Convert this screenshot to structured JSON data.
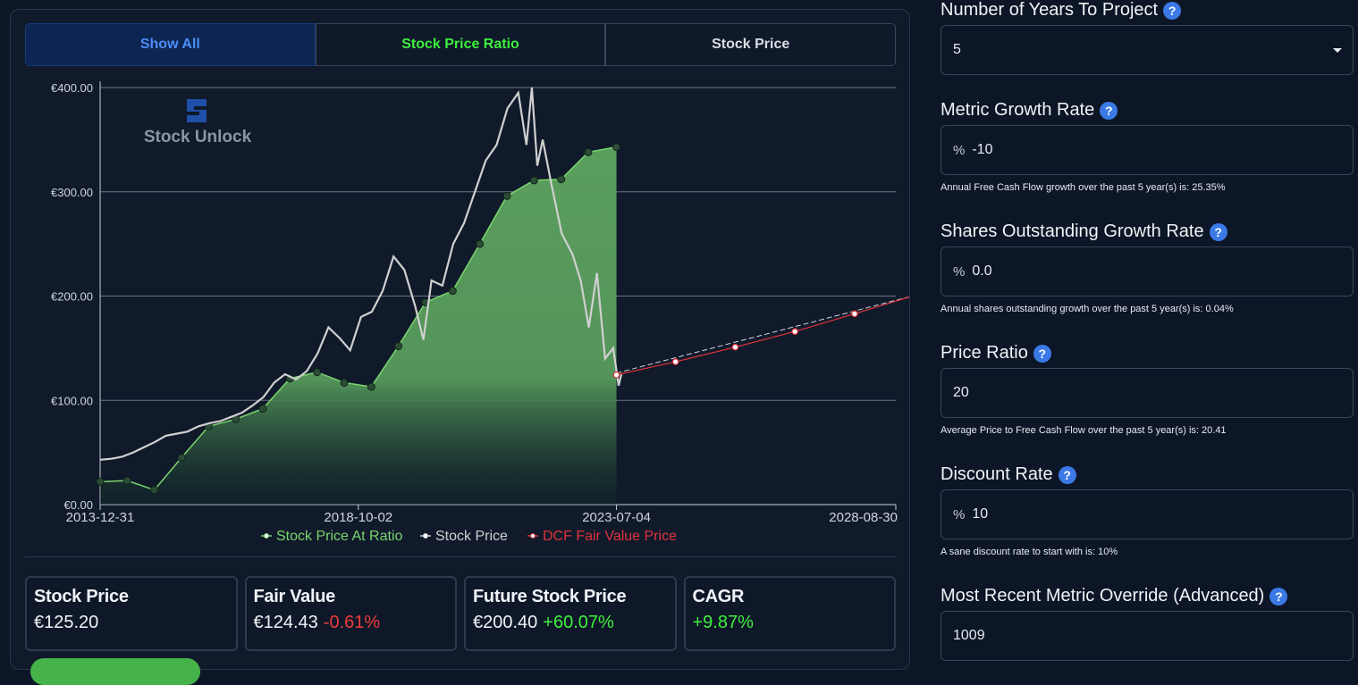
{
  "tabs": {
    "show_all": "Show All",
    "stock_price_ratio": "Stock Price Ratio",
    "stock_price": "Stock Price"
  },
  "watermark": {
    "text": "Stock Unlock"
  },
  "chart_data": {
    "type": "line",
    "title": "",
    "xlabel": "",
    "ylabel": "",
    "x_ticks": [
      "2013-12-31",
      "2018-10-02",
      "2023-07-04",
      "2028-08-30"
    ],
    "y_ticks": [
      "€0.00",
      "€100.00",
      "€200.00",
      "€300.00",
      "€400.00"
    ],
    "ylim": [
      0,
      400
    ],
    "xlim_years": [
      2013.99,
      2028.66
    ],
    "grid": true,
    "legend_position": "bottom",
    "series": [
      {
        "name": "Stock Price At Ratio",
        "color": "#7ad46e",
        "x": [
          2013.99,
          2014.49,
          2014.99,
          2015.49,
          2015.99,
          2016.49,
          2016.99,
          2017.49,
          2017.99,
          2018.49,
          2018.99,
          2019.49,
          2019.99,
          2020.49,
          2020.99,
          2021.49,
          2021.99,
          2022.49,
          2022.99,
          2023.51
        ],
        "values": [
          22,
          23,
          14,
          45,
          75,
          82,
          92,
          121,
          127,
          117,
          113,
          152,
          194,
          205,
          250,
          296,
          311,
          312,
          338,
          343
        ]
      },
      {
        "name": "Stock Price",
        "color": "#d0d0d0",
        "x": [
          2013.99,
          2014.2,
          2014.4,
          2014.6,
          2014.8,
          2015.0,
          2015.2,
          2015.4,
          2015.6,
          2015.8,
          2016.0,
          2016.2,
          2016.4,
          2016.6,
          2016.8,
          2017.0,
          2017.2,
          2017.4,
          2017.6,
          2017.8,
          2018.0,
          2018.2,
          2018.4,
          2018.6,
          2018.8,
          2019.0,
          2019.2,
          2019.4,
          2019.6,
          2019.8,
          2019.95,
          2020.1,
          2020.3,
          2020.5,
          2020.7,
          2020.9,
          2021.1,
          2021.3,
          2021.5,
          2021.7,
          2021.85,
          2021.95,
          2022.05,
          2022.15,
          2022.3,
          2022.5,
          2022.7,
          2022.85,
          2023.0,
          2023.15,
          2023.3,
          2023.45,
          2023.55,
          2023.6
        ],
        "values": [
          43,
          44,
          46,
          50,
          55,
          60,
          66,
          68,
          70,
          75,
          78,
          80,
          84,
          88,
          95,
          103,
          117,
          125,
          120,
          128,
          145,
          170,
          160,
          148,
          180,
          185,
          205,
          238,
          225,
          190,
          158,
          215,
          210,
          250,
          270,
          300,
          330,
          345,
          380,
          395,
          345,
          400,
          325,
          350,
          310,
          260,
          240,
          215,
          170,
          222,
          140,
          150,
          114,
          125
        ]
      },
      {
        "name": "DCF Fair Value Price",
        "color": "#e0343a",
        "x": [
          2023.51,
          2024.6,
          2025.7,
          2026.8,
          2027.9,
          2028.99
        ],
        "values": [
          124.43,
          137,
          151,
          166,
          183,
          200.4
        ]
      }
    ]
  },
  "stats": {
    "stock_price": {
      "title": "Stock Price",
      "value": "€125.20"
    },
    "fair_value": {
      "title": "Fair Value",
      "value": "€124.43",
      "change": "-0.61%"
    },
    "future_price": {
      "title": "Future Stock Price",
      "value": "€200.40",
      "change": "+60.07%"
    },
    "cagr": {
      "title": "CAGR",
      "value": "+9.87%"
    }
  },
  "form": {
    "years": {
      "label": "Number of Years To Project",
      "value": "5"
    },
    "metric_growth": {
      "label": "Metric Growth Rate",
      "prefix": "%",
      "value": "-10",
      "hint": "Annual Free Cash Flow growth over the past 5 year(s) is: 25.35%"
    },
    "shares_growth": {
      "label": "Shares Outstanding Growth Rate",
      "prefix": "%",
      "value": "0.0",
      "hint": "Annual shares outstanding growth over the past 5 year(s) is: 0.04%"
    },
    "price_ratio": {
      "label": "Price Ratio",
      "value": "20",
      "hint": "Average Price to Free Cash Flow over the past 5 year(s) is: 20.41"
    },
    "discount_rate": {
      "label": "Discount Rate",
      "prefix": "%",
      "value": "10",
      "hint": "A sane discount rate to start with is: 10%"
    },
    "metric_override": {
      "label": "Most Recent Metric Override (Advanced)",
      "value": "1009"
    },
    "help_glyph": "?"
  }
}
